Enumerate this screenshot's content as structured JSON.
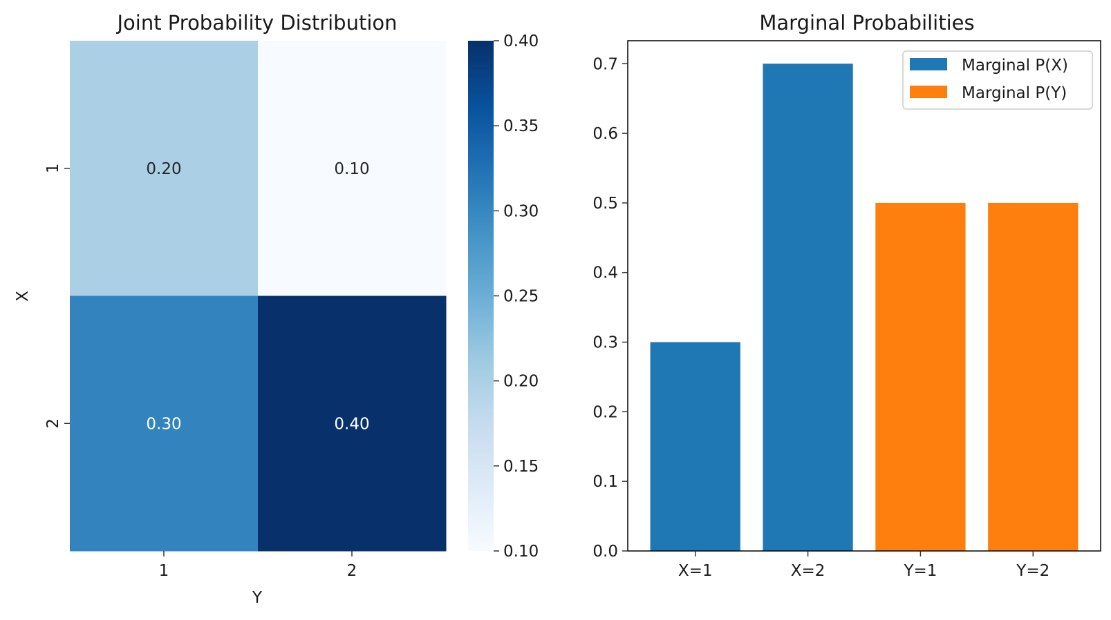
{
  "chart_data": [
    {
      "type": "heatmap",
      "title": "Joint Probability Distribution",
      "xlabel": "Y",
      "ylabel": "X",
      "x_categories": [
        "1",
        "2"
      ],
      "y_categories": [
        "1",
        "2"
      ],
      "values": [
        [
          0.2,
          0.1
        ],
        [
          0.3,
          0.4
        ]
      ],
      "cell_labels": [
        [
          "0.20",
          "0.10"
        ],
        [
          "0.30",
          "0.40"
        ]
      ],
      "colormap": "Blues",
      "color_range": [
        0.1,
        0.4
      ],
      "cell_colors": [
        [
          "#abd0e6",
          "#f7fbff"
        ],
        [
          "#3383be",
          "#08306b"
        ]
      ],
      "label_colors": [
        [
          "#262626",
          "#262626"
        ],
        [
          "#ffffff",
          "#ffffff"
        ]
      ],
      "colorbar_ticks": [
        "0.10",
        "0.15",
        "0.20",
        "0.25",
        "0.30",
        "0.35",
        "0.40"
      ],
      "colorbar_tick_values": [
        0.1,
        0.15,
        0.2,
        0.25,
        0.3,
        0.35,
        0.4
      ]
    },
    {
      "type": "bar",
      "title": "Marginal Probabilities",
      "categories": [
        "X=1",
        "X=2",
        "Y=1",
        "Y=2"
      ],
      "series": [
        {
          "name": "Marginal P(X)",
          "color": "#1f77b4",
          "values": [
            0.3,
            0.7,
            null,
            null
          ]
        },
        {
          "name": "Marginal P(Y)",
          "color": "#ff7f0e",
          "values": [
            null,
            null,
            0.5,
            0.5
          ]
        }
      ],
      "ylim": [
        0,
        0.733
      ],
      "yticks": [
        0.0,
        0.1,
        0.2,
        0.3,
        0.4,
        0.5,
        0.6,
        0.7
      ],
      "ytick_labels": [
        "0.0",
        "0.1",
        "0.2",
        "0.3",
        "0.4",
        "0.5",
        "0.6",
        "0.7"
      ],
      "legend_position": "top-right",
      "grid": false
    }
  ]
}
